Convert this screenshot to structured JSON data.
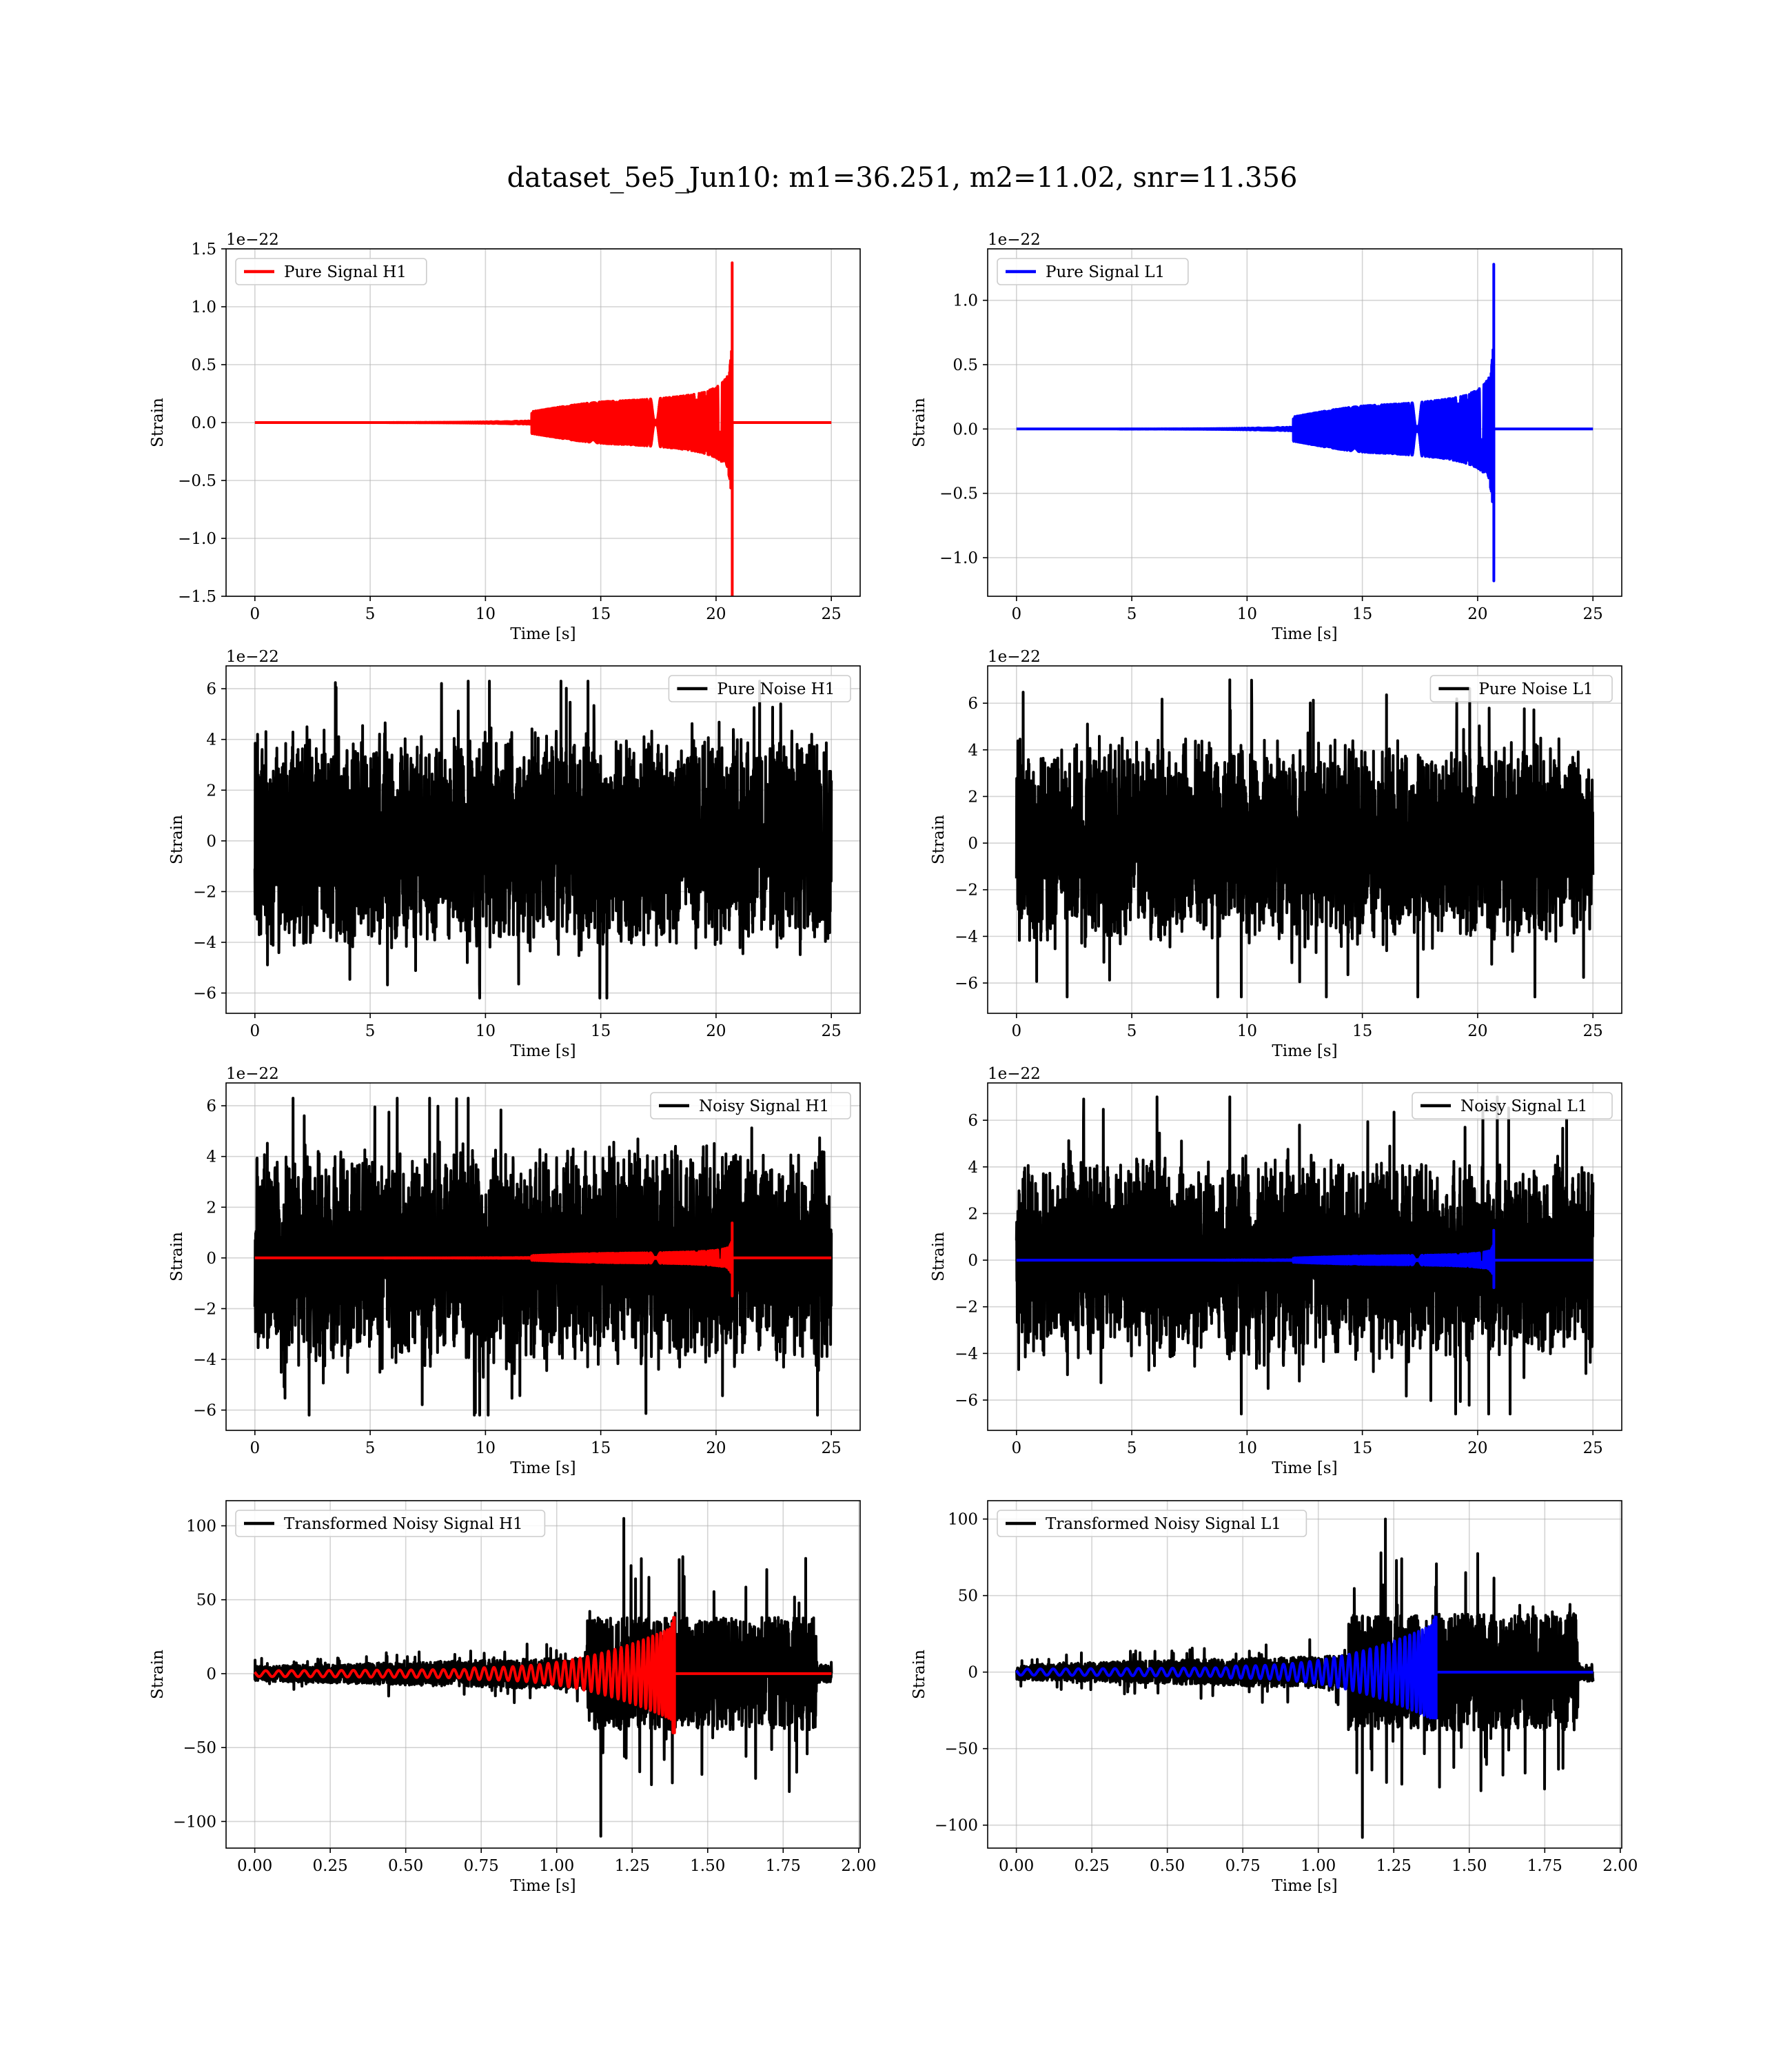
{
  "title": "dataset_5e5_Jun10: m1=36.251, m2=11.02, snr=11.356",
  "colors": {
    "h1": "#ff0000",
    "l1": "#0000ff",
    "noise": "#000000"
  },
  "chart_data": [
    {
      "id": "pure-signal-h1",
      "type": "line",
      "xlabel": "Time [s]",
      "ylabel": "Strain",
      "offset_text": "1e−22",
      "xlim": [
        -1.25,
        26.25
      ],
      "ylim": [
        -1.5,
        1.5
      ],
      "xticks": [
        "0",
        "5",
        "10",
        "15",
        "20",
        "25"
      ],
      "xtick_values": [
        0,
        5,
        10,
        15,
        20,
        25
      ],
      "yticks": [
        "−1.5",
        "−1.0",
        "−0.5",
        "0.0",
        "0.5",
        "1.0",
        "1.5"
      ],
      "ytick_values": [
        -1.5,
        -1.0,
        -0.5,
        0,
        0.5,
        1.0,
        1.5
      ],
      "legend": {
        "placement": "upper-left"
      },
      "series": [
        {
          "name": "Pure Signal H1",
          "kind": "chirp",
          "color": "h1",
          "t_start": 0,
          "t_merge": 20.7,
          "t_end": 25,
          "peak_max": 1.38,
          "peak_min": -1.5,
          "show_legend": true
        }
      ]
    },
    {
      "id": "pure-signal-l1",
      "type": "line",
      "xlabel": "Time [s]",
      "ylabel": "Strain",
      "offset_text": "1e−22",
      "xlim": [
        -1.25,
        26.25
      ],
      "ylim": [
        -1.3,
        1.4
      ],
      "xticks": [
        "0",
        "5",
        "10",
        "15",
        "20",
        "25"
      ],
      "xtick_values": [
        0,
        5,
        10,
        15,
        20,
        25
      ],
      "yticks": [
        "−1.0",
        "−0.5",
        "0.0",
        "0.5",
        "1.0"
      ],
      "ytick_values": [
        -1.0,
        -0.5,
        0,
        0.5,
        1.0
      ],
      "legend": {
        "placement": "upper-left"
      },
      "series": [
        {
          "name": "Pure Signal L1",
          "kind": "chirp",
          "color": "l1",
          "t_start": 0,
          "t_merge": 20.7,
          "t_end": 25,
          "peak_max": 1.28,
          "peak_min": -1.18,
          "show_legend": true
        }
      ]
    },
    {
      "id": "pure-noise-h1",
      "type": "line",
      "xlabel": "Time [s]",
      "ylabel": "Strain",
      "offset_text": "1e−22",
      "xlim": [
        -1.25,
        26.25
      ],
      "ylim": [
        -6.8,
        6.9
      ],
      "xticks": [
        "0",
        "5",
        "10",
        "15",
        "20",
        "25"
      ],
      "xtick_values": [
        0,
        5,
        10,
        15,
        20,
        25
      ],
      "yticks": [
        "−6",
        "−4",
        "−2",
        "0",
        "2",
        "4",
        "6"
      ],
      "ytick_values": [
        -6,
        -4,
        -2,
        0,
        2,
        4,
        6
      ],
      "legend": {
        "placement": "upper-right"
      },
      "series": [
        {
          "name": "Pure Noise H1",
          "kind": "noise",
          "color": "noise",
          "t_start": 0,
          "t_end": 25,
          "max": 6.3,
          "min": -6.2,
          "show_legend": true
        }
      ]
    },
    {
      "id": "pure-noise-l1",
      "type": "line",
      "xlabel": "Time [s]",
      "ylabel": "Strain",
      "offset_text": "1e−22",
      "xlim": [
        -1.25,
        26.25
      ],
      "ylim": [
        -7.3,
        7.6
      ],
      "xticks": [
        "0",
        "5",
        "10",
        "15",
        "20",
        "25"
      ],
      "xtick_values": [
        0,
        5,
        10,
        15,
        20,
        25
      ],
      "yticks": [
        "−6",
        "−4",
        "−2",
        "0",
        "2",
        "4",
        "6"
      ],
      "ytick_values": [
        -6,
        -4,
        -2,
        0,
        2,
        4,
        6
      ],
      "legend": {
        "placement": "upper-right"
      },
      "series": [
        {
          "name": "Pure Noise L1",
          "kind": "noise",
          "color": "noise",
          "t_start": 0,
          "t_end": 25,
          "max": 7.0,
          "min": -6.6,
          "show_legend": true
        }
      ]
    },
    {
      "id": "noisy-signal-h1",
      "type": "line",
      "xlabel": "Time [s]",
      "ylabel": "Strain",
      "offset_text": "1e−22",
      "xlim": [
        -1.25,
        26.25
      ],
      "ylim": [
        -6.8,
        6.9
      ],
      "xticks": [
        "0",
        "5",
        "10",
        "15",
        "20",
        "25"
      ],
      "xtick_values": [
        0,
        5,
        10,
        15,
        20,
        25
      ],
      "yticks": [
        "−6",
        "−4",
        "−2",
        "0",
        "2",
        "4",
        "6"
      ],
      "ytick_values": [
        -6,
        -4,
        -2,
        0,
        2,
        4,
        6
      ],
      "legend": {
        "placement": "upper-right"
      },
      "series": [
        {
          "name": "Noisy Signal H1",
          "kind": "noise",
          "color": "noise",
          "t_start": 0,
          "t_end": 25,
          "max": 6.3,
          "min": -6.2,
          "show_legend": true
        },
        {
          "name": "",
          "kind": "chirp",
          "color": "h1",
          "t_start": 0,
          "t_merge": 20.7,
          "t_end": 25,
          "peak_max": 1.38,
          "peak_min": -1.5,
          "show_legend": false
        }
      ]
    },
    {
      "id": "noisy-signal-l1",
      "type": "line",
      "xlabel": "Time [s]",
      "ylabel": "Strain",
      "offset_text": "1e−22",
      "xlim": [
        -1.25,
        26.25
      ],
      "ylim": [
        -7.3,
        7.6
      ],
      "xticks": [
        "0",
        "5",
        "10",
        "15",
        "20",
        "25"
      ],
      "xtick_values": [
        0,
        5,
        10,
        15,
        20,
        25
      ],
      "yticks": [
        "−6",
        "−4",
        "−2",
        "0",
        "2",
        "4",
        "6"
      ],
      "ytick_values": [
        -6,
        -4,
        -2,
        0,
        2,
        4,
        6
      ],
      "legend": {
        "placement": "upper-right"
      },
      "series": [
        {
          "name": "Noisy Signal L1",
          "kind": "noise",
          "color": "noise",
          "t_start": 0,
          "t_end": 25,
          "max": 7.0,
          "min": -6.6,
          "show_legend": true
        },
        {
          "name": "",
          "kind": "chirp",
          "color": "l1",
          "t_start": 0,
          "t_merge": 20.7,
          "t_end": 25,
          "peak_max": 1.28,
          "peak_min": -1.18,
          "show_legend": false
        }
      ]
    },
    {
      "id": "transformed-noisy-signal-h1",
      "type": "line",
      "xlabel": "Time [s]",
      "ylabel": "Strain",
      "offset_text": "",
      "xlim": [
        -0.095,
        2.005
      ],
      "ylim": [
        -118,
        117
      ],
      "xticks": [
        "0.00",
        "0.25",
        "0.50",
        "0.75",
        "1.00",
        "1.25",
        "1.50",
        "1.75",
        "2.00"
      ],
      "xtick_values": [
        0,
        0.25,
        0.5,
        0.75,
        1.0,
        1.25,
        1.5,
        1.75,
        2.0
      ],
      "yticks": [
        "−100",
        "−50",
        "0",
        "50",
        "100"
      ],
      "ytick_values": [
        -100,
        -50,
        0,
        50,
        100
      ],
      "legend": {
        "placement": "upper-left"
      },
      "series": [
        {
          "name": "Transformed Noisy Signal H1",
          "kind": "transformed-noise",
          "color": "noise",
          "t_start": 0,
          "t_end": 1.91,
          "t_jump": 1.1,
          "max": 105,
          "min": -110,
          "show_legend": true
        },
        {
          "name": "",
          "kind": "transformed-chirp",
          "color": "h1",
          "t_start": 0,
          "t_merge": 1.39,
          "t_end": 1.91,
          "peak_max": 38,
          "peak_min": -40,
          "show_legend": false
        }
      ]
    },
    {
      "id": "transformed-noisy-signal-l1",
      "type": "line",
      "xlabel": "Time [s]",
      "ylabel": "Strain",
      "offset_text": "",
      "xlim": [
        -0.095,
        2.005
      ],
      "ylim": [
        -115,
        112
      ],
      "xticks": [
        "0.00",
        "0.25",
        "0.50",
        "0.75",
        "1.00",
        "1.25",
        "1.50",
        "1.75",
        "2.00"
      ],
      "xtick_values": [
        0,
        0.25,
        0.5,
        0.75,
        1.0,
        1.25,
        1.5,
        1.75,
        2.0
      ],
      "yticks": [
        "−100",
        "−50",
        "0",
        "50",
        "100"
      ],
      "ytick_values": [
        -100,
        -50,
        0,
        50,
        100
      ],
      "legend": {
        "placement": "upper-left"
      },
      "series": [
        {
          "name": "Transformed Noisy Signal L1",
          "kind": "transformed-noise",
          "color": "noise",
          "t_start": 0,
          "t_end": 1.91,
          "t_jump": 1.1,
          "max": 100,
          "min": -108,
          "show_legend": true
        },
        {
          "name": "",
          "kind": "transformed-chirp",
          "color": "l1",
          "t_start": 0,
          "t_merge": 1.39,
          "t_end": 1.91,
          "peak_max": 36,
          "peak_min": -30,
          "show_legend": false
        }
      ]
    }
  ]
}
